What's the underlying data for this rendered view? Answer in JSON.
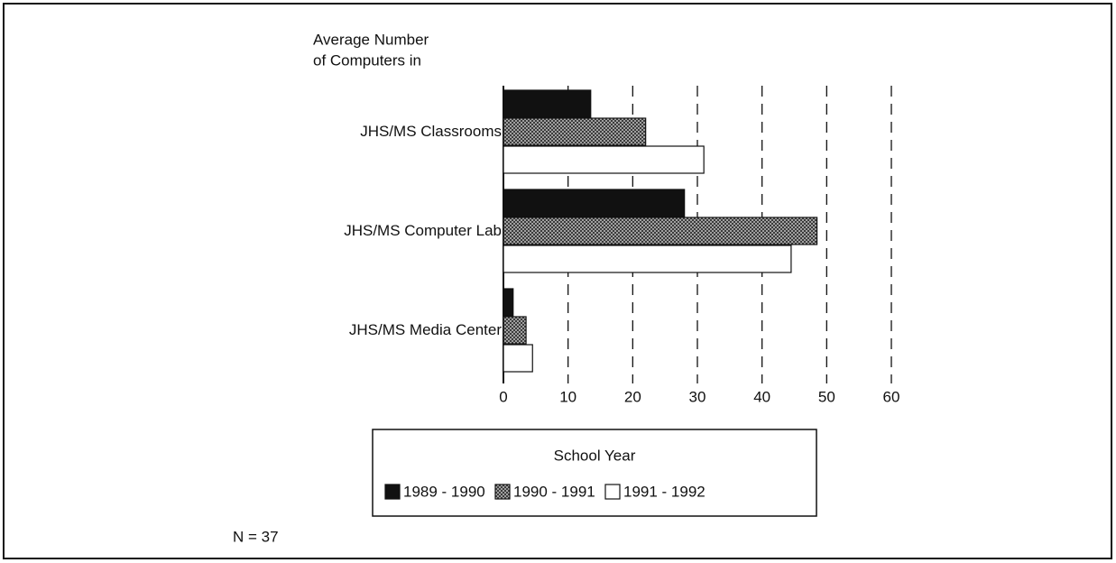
{
  "chart_data": {
    "type": "hbar",
    "title": [
      "Average Number",
      "of Computers in"
    ],
    "categories": [
      "JHS/MS Classrooms",
      "JHS/MS Computer Lab",
      "JHS/MS Media Center"
    ],
    "series": [
      {
        "name": "1989 - 1990",
        "color": "#111111",
        "values": [
          13.5,
          28,
          1.5
        ]
      },
      {
        "name": "1990 - 1991",
        "color": "#8a8a8a",
        "pattern": "hatch",
        "values": [
          22,
          48.5,
          3.5
        ]
      },
      {
        "name": "1991 - 1992",
        "color": "#ffffff",
        "values": [
          31,
          44.5,
          4.5
        ]
      }
    ],
    "xlim": [
      0,
      60
    ],
    "xticks": [
      0,
      10,
      20,
      30,
      40,
      50,
      60
    ],
    "grid": true,
    "legend_title": "School Year",
    "note": "N = 37"
  }
}
